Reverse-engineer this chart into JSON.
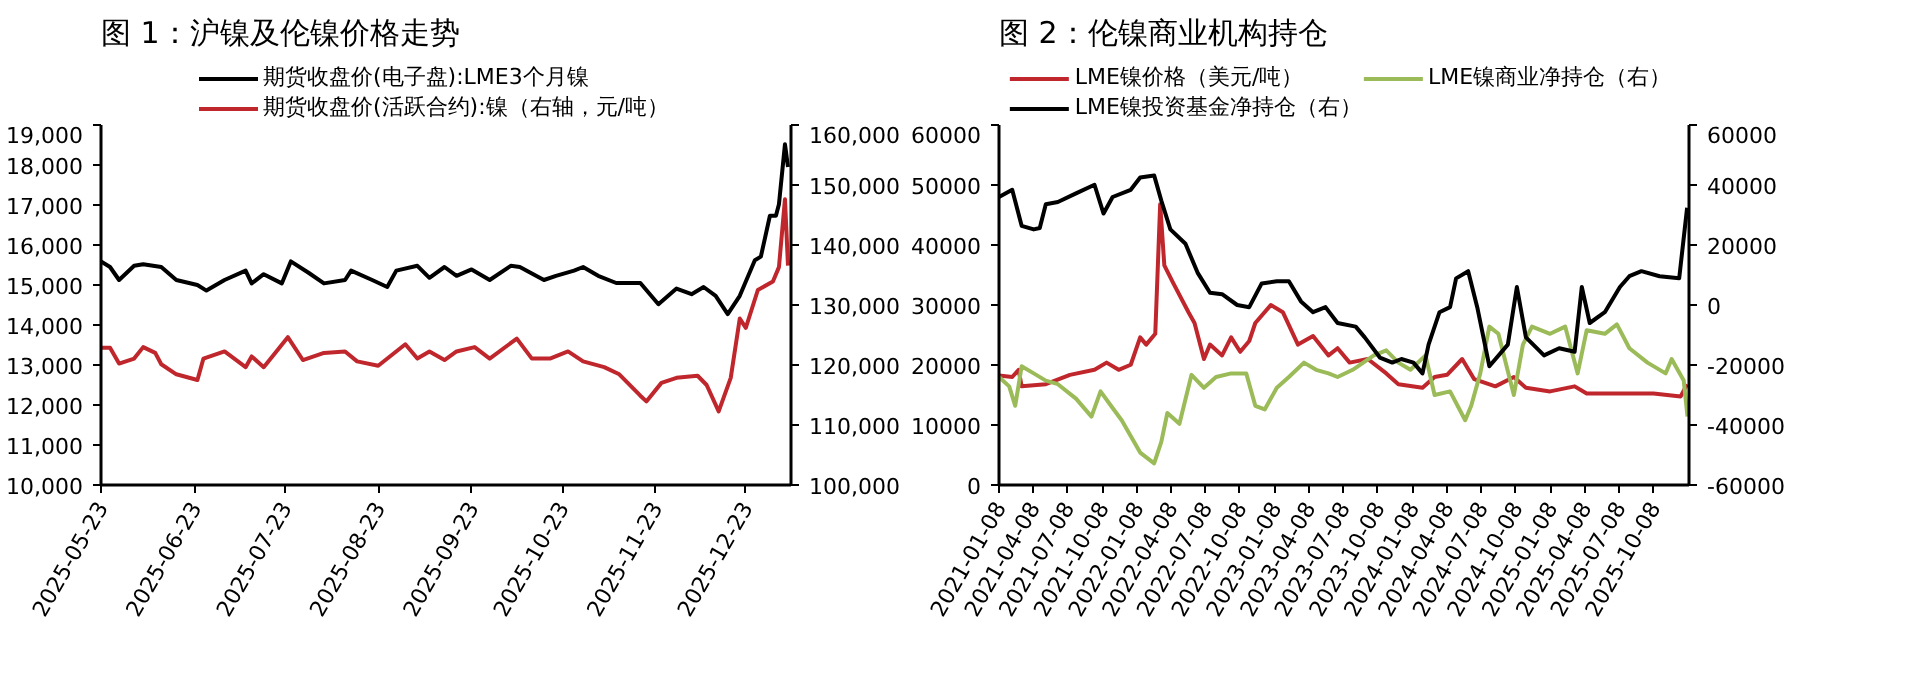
{
  "chart_data": [
    {
      "type": "line",
      "title": "图 1：沪镍及伦镍价格走势",
      "legend": "top",
      "xlim": [
        "2025-05-23",
        "2026-01-07"
      ],
      "xticks": [
        "2025-05-23",
        "2025-06-23",
        "2025-07-23",
        "2025-08-23",
        "2025-09-23",
        "2025-10-23",
        "2025-11-23",
        "2025-12-23"
      ],
      "ylim": [
        10000,
        19000
      ],
      "yticks": [
        {
          "value": 10000,
          "label": "10,000"
        },
        {
          "value": 11000,
          "label": "11,000"
        },
        {
          "value": 12000,
          "label": "12,000"
        },
        {
          "value": 13000,
          "label": "13,000"
        },
        {
          "value": 14000,
          "label": "14,000"
        },
        {
          "value": 15000,
          "label": "15,000"
        },
        {
          "value": 16000,
          "label": "16,000"
        },
        {
          "value": 17000,
          "label": "17,000"
        },
        {
          "value": 18000,
          "label": "18,000"
        },
        {
          "value": 19000,
          "label": "19,000"
        }
      ],
      "y2lim": [
        100000,
        160000
      ],
      "y2ticks": [
        {
          "value": 100000,
          "label": "100,000"
        },
        {
          "value": 110000,
          "label": "110,000"
        },
        {
          "value": 120000,
          "label": "120,000"
        },
        {
          "value": 130000,
          "label": "130,000"
        },
        {
          "value": 140000,
          "label": "140,000"
        },
        {
          "value": 150000,
          "label": "150,000"
        },
        {
          "value": 160000,
          "label": "160,000"
        }
      ],
      "series": [
        {
          "name": "期货收盘价(电子盘):LME3个月镍",
          "color": "#000000",
          "x": [
            "2025-05-23",
            "2025-05-26",
            "2025-05-29",
            "2025-06-03",
            "2025-06-06",
            "2025-06-12",
            "2025-06-17",
            "2025-06-24",
            "2025-06-27",
            "2025-07-03",
            "2025-07-10",
            "2025-07-12",
            "2025-07-16",
            "2025-07-22",
            "2025-07-25",
            "2025-07-31",
            "2025-08-05",
            "2025-08-12",
            "2025-08-14",
            "2025-08-21",
            "2025-08-26",
            "2025-08-29",
            "2025-09-05",
            "2025-09-09",
            "2025-09-14",
            "2025-09-18",
            "2025-09-23",
            "2025-09-29",
            "2025-10-06",
            "2025-10-09",
            "2025-10-17",
            "2025-10-21",
            "2025-10-27",
            "2025-10-30",
            "2025-11-04",
            "2025-11-10",
            "2025-11-18",
            "2025-11-24",
            "2025-11-30",
            "2025-12-05",
            "2025-12-09",
            "2025-12-13",
            "2025-12-17",
            "2025-12-21",
            "2025-12-26",
            "2025-12-28",
            "2025-12-31",
            "2026-01-02",
            "2026-01-03",
            "2026-01-05",
            "2026-01-06"
          ],
          "values": [
            15590,
            15450,
            15125,
            15480,
            15520,
            15450,
            15125,
            15000,
            14860,
            15125,
            15360,
            15040,
            15270,
            15040,
            15590,
            15300,
            15040,
            15125,
            15360,
            15125,
            14950,
            15360,
            15480,
            15180,
            15450,
            15230,
            15390,
            15125,
            15480,
            15450,
            15125,
            15230,
            15360,
            15450,
            15230,
            15050,
            15050,
            14520,
            14910,
            14770,
            14950,
            14730,
            14270,
            14730,
            15620,
            15710,
            16730,
            16730,
            17020,
            18520,
            17950
          ]
        },
        {
          "name": "期货收盘价(活跃合约):镍（右轴，元/吨）",
          "color": "#c0272d",
          "axis": "y2",
          "x": [
            "2025-05-23",
            "2025-05-26",
            "2025-05-29",
            "2025-06-03",
            "2025-06-06",
            "2025-06-10",
            "2025-06-12",
            "2025-06-17",
            "2025-06-24",
            "2025-06-26",
            "2025-07-03",
            "2025-07-10",
            "2025-07-12",
            "2025-07-16",
            "2025-07-24",
            "2025-07-29",
            "2025-08-05",
            "2025-08-12",
            "2025-08-16",
            "2025-08-23",
            "2025-09-01",
            "2025-09-05",
            "2025-09-09",
            "2025-09-14",
            "2025-09-18",
            "2025-09-24",
            "2025-09-29",
            "2025-10-08",
            "2025-10-13",
            "2025-10-19",
            "2025-10-25",
            "2025-10-30",
            "2025-11-06",
            "2025-11-11",
            "2025-11-18",
            "2025-11-20",
            "2025-11-25",
            "2025-11-30",
            "2025-12-07",
            "2025-12-10",
            "2025-12-14",
            "2025-12-18",
            "2025-12-21",
            "2025-12-23",
            "2025-12-27",
            "2026-01-01",
            "2026-01-03",
            "2026-01-05",
            "2026-01-06"
          ],
          "values": [
            122860,
            122860,
            120240,
            121070,
            122980,
            122020,
            120120,
            118450,
            117500,
            121070,
            122260,
            119640,
            121430,
            119640,
            124640,
            120830,
            122020,
            122260,
            120600,
            119880,
            123450,
            121070,
            122260,
            120830,
            122260,
            122980,
            121070,
            124400,
            121070,
            121070,
            122260,
            120600,
            119640,
            118450,
            114880,
            113930,
            117020,
            117860,
            118210,
            116670,
            112260,
            117860,
            127740,
            126190,
            132500,
            133930,
            136310,
            147620,
            136550
          ]
        }
      ]
    },
    {
      "type": "line",
      "title": "图 2：伦镍商业机构持仓",
      "legend": "top",
      "xlim": [
        "2021-01-08",
        "2026-01-10"
      ],
      "xticks": [
        "2021-01-08",
        "2021-04-08",
        "2021-07-08",
        "2021-10-08",
        "2022-01-08",
        "2022-04-08",
        "2022-07-08",
        "2022-10-08",
        "2023-01-08",
        "2023-04-08",
        "2023-07-08",
        "2023-10-08",
        "2024-01-08",
        "2024-04-08",
        "2024-07-08",
        "2024-10-08",
        "2025-01-08",
        "2025-04-08",
        "2025-07-08",
        "2025-10-08"
      ],
      "ylim": [
        0,
        60000
      ],
      "yticks": [
        0,
        10000,
        20000,
        30000,
        40000,
        50000,
        60000
      ],
      "y2lim": [
        -60000,
        60000
      ],
      "y2ticks": [
        -60000,
        -40000,
        -20000,
        0,
        20000,
        40000,
        60000
      ],
      "series": [
        {
          "name": "LME镍价格（美元/吨）",
          "color": "#c0272d",
          "x": [
            "2021-01-08",
            "2021-02-12",
            "2021-03-01",
            "2021-03-09",
            "2021-05-12",
            "2021-07-15",
            "2021-09-18",
            "2021-10-20",
            "2021-11-21",
            "2021-12-23",
            "2022-01-17",
            "2022-02-02",
            "2022-02-26",
            "2022-03-11",
            "2022-03-22",
            "2022-04-15",
            "2022-05-25",
            "2022-06-10",
            "2022-07-05",
            "2022-07-21",
            "2022-08-22",
            "2022-09-15",
            "2022-10-09",
            "2022-11-02",
            "2022-11-18",
            "2022-12-29",
            "2023-01-30",
            "2023-03-11",
            "2023-04-20",
            "2023-05-31",
            "2023-06-24",
            "2023-07-26",
            "2023-09-12",
            "2023-10-31",
            "2023-12-02",
            "2024-02-04",
            "2024-03-07",
            "2024-04-09",
            "2024-05-19",
            "2024-06-20",
            "2024-08-15",
            "2024-10-03",
            "2024-11-04",
            "2025-01-07",
            "2025-03-13",
            "2025-04-14",
            "2025-07-03",
            "2025-10-08",
            "2025-12-19",
            "2026-01-05"
          ],
          "values": [
            18240,
            18000,
            19200,
            16440,
            16800,
            18360,
            19200,
            20400,
            19200,
            20040,
            24600,
            23400,
            25200,
            46800,
            36600,
            33600,
            28800,
            27000,
            21000,
            23400,
            21600,
            24600,
            22200,
            24000,
            27000,
            30000,
            28800,
            23400,
            24840,
            21600,
            22800,
            20400,
            21000,
            18600,
            16800,
            16200,
            18000,
            18360,
            21000,
            17640,
            16440,
            18000,
            16200,
            15600,
            16440,
            15240,
            15240,
            15240,
            14760,
            16800
          ]
        },
        {
          "name": "LME镍商业净持仓（右）",
          "color": "#9bbb59",
          "axis": "y2",
          "x": [
            "2021-01-08",
            "2021-02-04",
            "2021-02-20",
            "2021-03-09",
            "2021-04-10",
            "2021-05-12",
            "2021-06-13",
            "2021-07-31",
            "2021-09-10",
            "2021-10-04",
            "2021-11-05",
            "2021-11-29",
            "2022-01-17",
            "2022-02-23",
            "2022-03-14",
            "2022-03-30",
            "2022-05-01",
            "2022-06-02",
            "2022-07-05",
            "2022-08-06",
            "2022-09-15",
            "2022-10-25",
            "2022-11-18",
            "2022-12-13",
            "2023-01-14",
            "2023-02-15",
            "2023-03-27",
            "2023-04-28",
            "2023-05-31",
            "2023-06-24",
            "2023-08-03",
            "2023-09-28",
            "2023-10-31",
            "2023-12-02",
            "2024-01-03",
            "2024-02-12",
            "2024-03-07",
            "2024-04-17",
            "2024-05-27",
            "2024-06-12",
            "2024-07-06",
            "2024-07-30",
            "2024-08-23",
            "2024-10-03",
            "2024-10-27",
            "2024-11-20",
            "2025-01-07",
            "2025-02-16",
            "2025-03-21",
            "2025-04-14",
            "2025-06-01",
            "2025-07-03",
            "2025-08-05",
            "2025-09-22",
            "2025-11-09",
            "2025-11-25",
            "2025-12-27",
            "2026-01-06"
          ],
          "values": [
            -24000,
            -27120,
            -33600,
            -20400,
            -22800,
            -25200,
            -26400,
            -31200,
            -37200,
            -28800,
            -34320,
            -38400,
            -49200,
            -52800,
            -45600,
            -36000,
            -39600,
            -23280,
            -27600,
            -24000,
            -22800,
            -22800,
            -33600,
            -34800,
            -27600,
            -24000,
            -19200,
            -21600,
            -22800,
            -24000,
            -21600,
            -16800,
            -15120,
            -19200,
            -21600,
            -16800,
            -30000,
            -28800,
            -38400,
            -33600,
            -22800,
            -7200,
            -9600,
            -30000,
            -13200,
            -7200,
            -9600,
            -7200,
            -22800,
            -8400,
            -9600,
            -6480,
            -14400,
            -19200,
            -22800,
            -18000,
            -25200,
            -37200
          ]
        },
        {
          "name": "LME镍投资基金净持仓（右）",
          "color": "#000000",
          "axis": "y2",
          "x": [
            "2021-01-08",
            "2021-02-12",
            "2021-03-09",
            "2021-04-10",
            "2021-04-26",
            "2021-05-12",
            "2021-06-13",
            "2021-07-31",
            "2021-09-18",
            "2021-10-12",
            "2021-11-05",
            "2021-12-23",
            "2022-01-17",
            "2022-02-23",
            "2022-03-14",
            "2022-04-07",
            "2022-05-17",
            "2022-06-18",
            "2022-07-21",
            "2022-08-22",
            "2022-10-01",
            "2022-11-02",
            "2022-12-05",
            "2023-01-14",
            "2023-02-15",
            "2023-03-19",
            "2023-04-20",
            "2023-05-23",
            "2023-06-24",
            "2023-08-11",
            "2023-09-04",
            "2023-10-14",
            "2023-11-16",
            "2023-12-10",
            "2024-01-11",
            "2024-02-04",
            "2024-02-20",
            "2024-03-20",
            "2024-04-17",
            "2024-05-03",
            "2024-06-04",
            "2024-06-28",
            "2024-07-30",
            "2024-09-17",
            "2024-10-11",
            "2024-11-04",
            "2024-12-22",
            "2025-01-31",
            "2025-03-13",
            "2025-04-01",
            "2025-04-22",
            "2025-06-01",
            "2025-07-11",
            "2025-08-05",
            "2025-09-06",
            "2025-10-24",
            "2025-12-15",
            "2026-01-05"
          ],
          "values": [
            36000,
            38400,
            26400,
            25200,
            25680,
            33600,
            34320,
            37200,
            40080,
            30480,
            36000,
            38400,
            42480,
            43200,
            34800,
            25200,
            20400,
            10800,
            4080,
            3600,
            0,
            -720,
            7200,
            7920,
            7920,
            1200,
            -2400,
            -720,
            -6000,
            -7200,
            -10800,
            -17520,
            -19200,
            -18000,
            -19200,
            -22800,
            -13200,
            -2400,
            -720,
            8880,
            11280,
            -720,
            -20400,
            -13200,
            6000,
            -10800,
            -16800,
            -14400,
            -15600,
            6000,
            -6000,
            -2400,
            6000,
            9600,
            11280,
            9600,
            8880,
            32400
          ]
        }
      ]
    }
  ]
}
